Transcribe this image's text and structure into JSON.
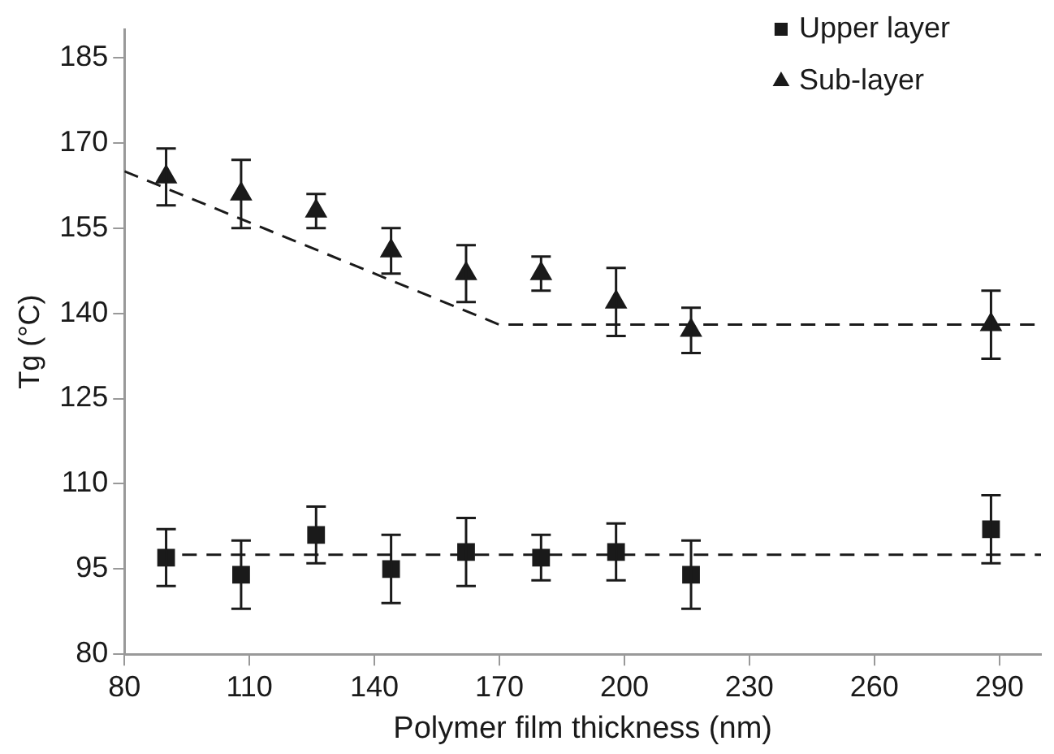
{
  "chart_data": {
    "type": "scatter",
    "xlabel": "Polymer film thickness (nm)",
    "ylabel": "Tg (°C)",
    "xlim": [
      80,
      300
    ],
    "xticks": [
      80,
      110,
      140,
      170,
      200,
      230,
      260,
      290
    ],
    "ylim": [
      80,
      190
    ],
    "yticks": [
      80,
      95,
      110,
      125,
      140,
      155,
      170,
      185
    ],
    "grid": false,
    "legend": "top right",
    "series": [
      {
        "name": "Upper layer",
        "color": "#1a1a1a",
        "marker": "square",
        "x": [
          90,
          108,
          126,
          144,
          162,
          180,
          198,
          216,
          288
        ],
        "values": [
          97,
          94,
          101,
          95,
          98,
          97,
          98,
          94,
          102
        ],
        "errors": [
          5,
          6,
          5,
          6,
          6,
          4,
          5,
          6,
          6
        ]
      },
      {
        "name": "Sub-layer",
        "color": "#1a1a1a",
        "marker": "triangle",
        "x": [
          90,
          108,
          126,
          144,
          162,
          180,
          198,
          216,
          288
        ],
        "values": [
          164,
          161,
          158,
          151,
          147,
          147,
          142,
          137,
          138
        ],
        "errors": [
          5,
          6,
          3,
          4,
          5,
          3,
          6,
          4,
          6
        ]
      },
      {
        "type": "line",
        "color": "#1a1a1a",
        "marker": "none",
        "line_style": "dashed",
        "x": [
          80,
          170,
          300
        ],
        "values": [
          165,
          138,
          138
        ]
      },
      {
        "type": "line",
        "color": "#1a1a1a",
        "marker": "none",
        "line_style": "dashed",
        "x": [
          88,
          300
        ],
        "values": [
          97.5,
          97.5
        ]
      }
    ]
  }
}
